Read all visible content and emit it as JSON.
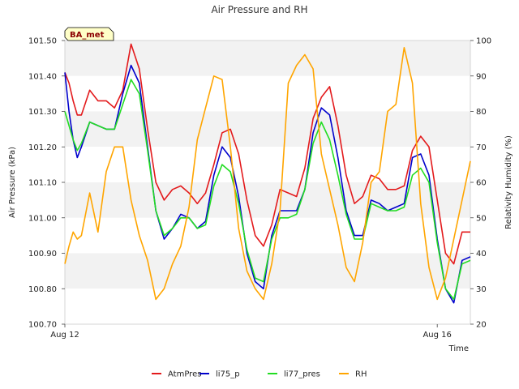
{
  "chart_data": {
    "type": "line",
    "title": "Air Pressure and RH",
    "badge": "BA_met",
    "xlabel": "Time",
    "ylabel": "Air Pressure (kPa)",
    "y2label": "Relativity Humidity (%)",
    "xlim": [
      0,
      4.9
    ],
    "ylim": [
      100.7,
      101.5
    ],
    "y2lim": [
      20,
      100
    ],
    "x_ticks": [
      {
        "x": 0,
        "label": "Aug 12"
      },
      {
        "x": 4.5,
        "label": "Aug 16"
      }
    ],
    "y_ticks": [
      "100.70",
      "100.80",
      "100.90",
      "101.00",
      "101.10",
      "101.20",
      "101.30",
      "101.40",
      "101.50"
    ],
    "y2_ticks": [
      "20",
      "30",
      "40",
      "50",
      "60",
      "70",
      "80",
      "90",
      "100"
    ],
    "grid": "alternating horizontal bands",
    "legend_position": "bottom",
    "series": [
      {
        "name": "AtmPres",
        "color": "#e31a1c",
        "axis": "left",
        "x": [
          0,
          0.05,
          0.1,
          0.15,
          0.2,
          0.3,
          0.4,
          0.5,
          0.6,
          0.7,
          0.8,
          0.9,
          1.0,
          1.1,
          1.2,
          1.3,
          1.4,
          1.5,
          1.6,
          1.7,
          1.8,
          1.9,
          2.0,
          2.1,
          2.2,
          2.3,
          2.4,
          2.5,
          2.6,
          2.7,
          2.8,
          2.9,
          3.0,
          3.1,
          3.2,
          3.3,
          3.4,
          3.5,
          3.6,
          3.7,
          3.8,
          3.9,
          4.0,
          4.1,
          4.2,
          4.3,
          4.4,
          4.5,
          4.6,
          4.7,
          4.8,
          4.9
        ],
        "values": [
          101.41,
          101.38,
          101.33,
          101.29,
          101.29,
          101.36,
          101.33,
          101.33,
          101.31,
          101.36,
          101.49,
          101.42,
          101.25,
          101.1,
          101.05,
          101.08,
          101.09,
          101.07,
          101.04,
          101.07,
          101.15,
          101.24,
          101.25,
          101.18,
          101.05,
          100.95,
          100.92,
          100.98,
          101.08,
          101.07,
          101.06,
          101.14,
          101.28,
          101.34,
          101.37,
          101.26,
          101.12,
          101.04,
          101.06,
          101.12,
          101.11,
          101.08,
          101.08,
          101.09,
          101.19,
          101.23,
          101.2,
          101.05,
          100.9,
          100.87,
          100.96,
          100.96
        ]
      },
      {
        "name": "li75_p",
        "color": "#0000cc",
        "axis": "left",
        "x": [
          0,
          0.05,
          0.1,
          0.15,
          0.2,
          0.3,
          0.4,
          0.5,
          0.6,
          0.7,
          0.8,
          0.9,
          1.0,
          1.1,
          1.2,
          1.3,
          1.4,
          1.5,
          1.6,
          1.7,
          1.8,
          1.9,
          2.0,
          2.1,
          2.2,
          2.3,
          2.4,
          2.5,
          2.6,
          2.7,
          2.8,
          2.9,
          3.0,
          3.1,
          3.2,
          3.3,
          3.4,
          3.5,
          3.6,
          3.7,
          3.8,
          3.9,
          4.0,
          4.1,
          4.2,
          4.3,
          4.4,
          4.5,
          4.6,
          4.7,
          4.8,
          4.9
        ],
        "values": [
          101.41,
          101.3,
          101.22,
          101.17,
          101.2,
          101.27,
          101.26,
          101.25,
          101.25,
          101.35,
          101.43,
          101.38,
          101.2,
          101.02,
          100.94,
          100.97,
          101.01,
          101.0,
          100.97,
          100.99,
          101.12,
          101.2,
          101.17,
          101.06,
          100.9,
          100.82,
          100.8,
          100.95,
          101.02,
          101.02,
          101.02,
          101.08,
          101.24,
          101.31,
          101.29,
          101.17,
          101.02,
          100.95,
          100.95,
          101.05,
          101.04,
          101.02,
          101.03,
          101.04,
          101.17,
          101.18,
          101.12,
          100.94,
          100.8,
          100.76,
          100.88,
          100.89
        ]
      },
      {
        "name": "li77_pres",
        "color": "#22dd22",
        "axis": "left",
        "x": [
          0,
          0.05,
          0.1,
          0.15,
          0.2,
          0.3,
          0.4,
          0.5,
          0.6,
          0.7,
          0.8,
          0.9,
          1.0,
          1.1,
          1.2,
          1.3,
          1.4,
          1.5,
          1.6,
          1.7,
          1.8,
          1.9,
          2.0,
          2.1,
          2.2,
          2.3,
          2.4,
          2.5,
          2.6,
          2.7,
          2.8,
          2.9,
          3.0,
          3.1,
          3.2,
          3.3,
          3.4,
          3.5,
          3.6,
          3.7,
          3.8,
          3.9,
          4.0,
          4.1,
          4.2,
          4.3,
          4.4,
          4.5,
          4.6,
          4.7,
          4.8,
          4.9
        ],
        "values": [
          101.3,
          101.26,
          101.22,
          101.19,
          101.21,
          101.27,
          101.26,
          101.25,
          101.25,
          101.32,
          101.39,
          101.35,
          101.19,
          101.02,
          100.95,
          100.97,
          101.0,
          101.0,
          100.97,
          100.98,
          101.09,
          101.15,
          101.13,
          101.04,
          100.91,
          100.83,
          100.82,
          100.94,
          101.0,
          101.0,
          101.01,
          101.08,
          101.21,
          101.27,
          101.22,
          101.12,
          101.01,
          100.94,
          100.94,
          101.04,
          101.03,
          101.02,
          101.02,
          101.03,
          101.12,
          101.14,
          101.1,
          100.93,
          100.8,
          100.77,
          100.87,
          100.88
        ]
      },
      {
        "name": "RH",
        "color": "#ffa500",
        "axis": "right",
        "x": [
          0,
          0.05,
          0.1,
          0.15,
          0.2,
          0.3,
          0.4,
          0.5,
          0.6,
          0.7,
          0.8,
          0.9,
          1.0,
          1.1,
          1.2,
          1.3,
          1.4,
          1.5,
          1.6,
          1.7,
          1.8,
          1.9,
          2.0,
          2.1,
          2.2,
          2.3,
          2.4,
          2.5,
          2.6,
          2.7,
          2.8,
          2.9,
          3.0,
          3.1,
          3.2,
          3.3,
          3.4,
          3.5,
          3.6,
          3.7,
          3.8,
          3.9,
          4.0,
          4.1,
          4.2,
          4.3,
          4.4,
          4.5,
          4.6,
          4.7,
          4.8,
          4.9
        ],
        "values": [
          37,
          42,
          46,
          44,
          45,
          57,
          46,
          63,
          70,
          70,
          55,
          45,
          38,
          27,
          30,
          37,
          42,
          53,
          72,
          81,
          90,
          89,
          70,
          47,
          35,
          30,
          27,
          37,
          52,
          88,
          93,
          96,
          92,
          68,
          58,
          48,
          36,
          32,
          43,
          60,
          63,
          80,
          82,
          98,
          88,
          54,
          36,
          27,
          33,
          44,
          55,
          66
        ]
      }
    ]
  }
}
